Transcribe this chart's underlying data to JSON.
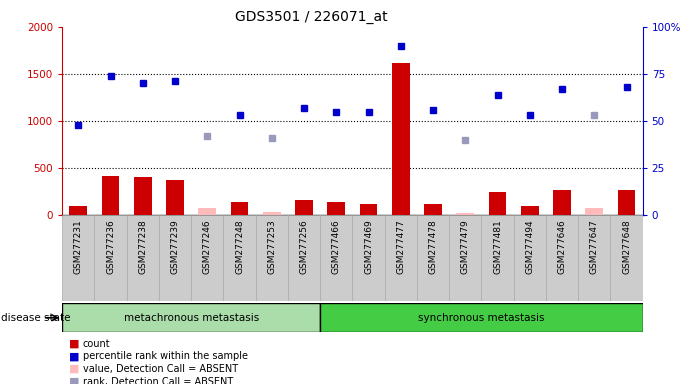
{
  "title": "GDS3501 / 226071_at",
  "samples": [
    "GSM277231",
    "GSM277236",
    "GSM277238",
    "GSM277239",
    "GSM277246",
    "GSM277248",
    "GSM277253",
    "GSM277256",
    "GSM277466",
    "GSM277469",
    "GSM277477",
    "GSM277478",
    "GSM277479",
    "GSM277481",
    "GSM277494",
    "GSM277646",
    "GSM277647",
    "GSM277648"
  ],
  "count_values": [
    100,
    420,
    400,
    375,
    0,
    135,
    0,
    155,
    140,
    120,
    1620,
    120,
    0,
    240,
    100,
    265,
    0,
    265
  ],
  "count_absent": [
    0,
    0,
    0,
    0,
    80,
    0,
    30,
    0,
    0,
    0,
    0,
    0,
    20,
    0,
    0,
    0,
    80,
    0
  ],
  "rank_values_pct": [
    48,
    74,
    70,
    71,
    0,
    53,
    0,
    57,
    55,
    55,
    90,
    56,
    0,
    64,
    53,
    67,
    0,
    68
  ],
  "rank_absent_pct": [
    0,
    0,
    0,
    0,
    42,
    0,
    41,
    0,
    0,
    0,
    0,
    0,
    40,
    0,
    0,
    0,
    53,
    0
  ],
  "metachronous_count": 8,
  "synchronous_count": 10,
  "group1_label": "metachronous metastasis",
  "group2_label": "synchronous metastasis",
  "disease_state_label": "disease state",
  "ylim_left": [
    0,
    2000
  ],
  "ylim_right": [
    0,
    100
  ],
  "yticks_left": [
    0,
    500,
    1000,
    1500,
    2000
  ],
  "yticks_right": [
    0,
    25,
    50,
    75,
    100
  ],
  "ytick_labels_left": [
    "0",
    "500",
    "1000",
    "1500",
    "2000"
  ],
  "ytick_labels_right": [
    "0",
    "25",
    "50",
    "75",
    "100%"
  ],
  "bar_color_red": "#cc0000",
  "bar_color_pink": "#ffbbbb",
  "dot_color_blue": "#0000cc",
  "dot_color_lightblue": "#9999bb",
  "tick_bg_color": "#cccccc",
  "green_light": "#aaddaa",
  "green_dark": "#44cc44",
  "legend_items": [
    {
      "color": "#cc0000",
      "label": "count"
    },
    {
      "color": "#0000cc",
      "label": "percentile rank within the sample"
    },
    {
      "color": "#ffbbbb",
      "label": "value, Detection Call = ABSENT"
    },
    {
      "color": "#9999bb",
      "label": "rank, Detection Call = ABSENT"
    }
  ]
}
